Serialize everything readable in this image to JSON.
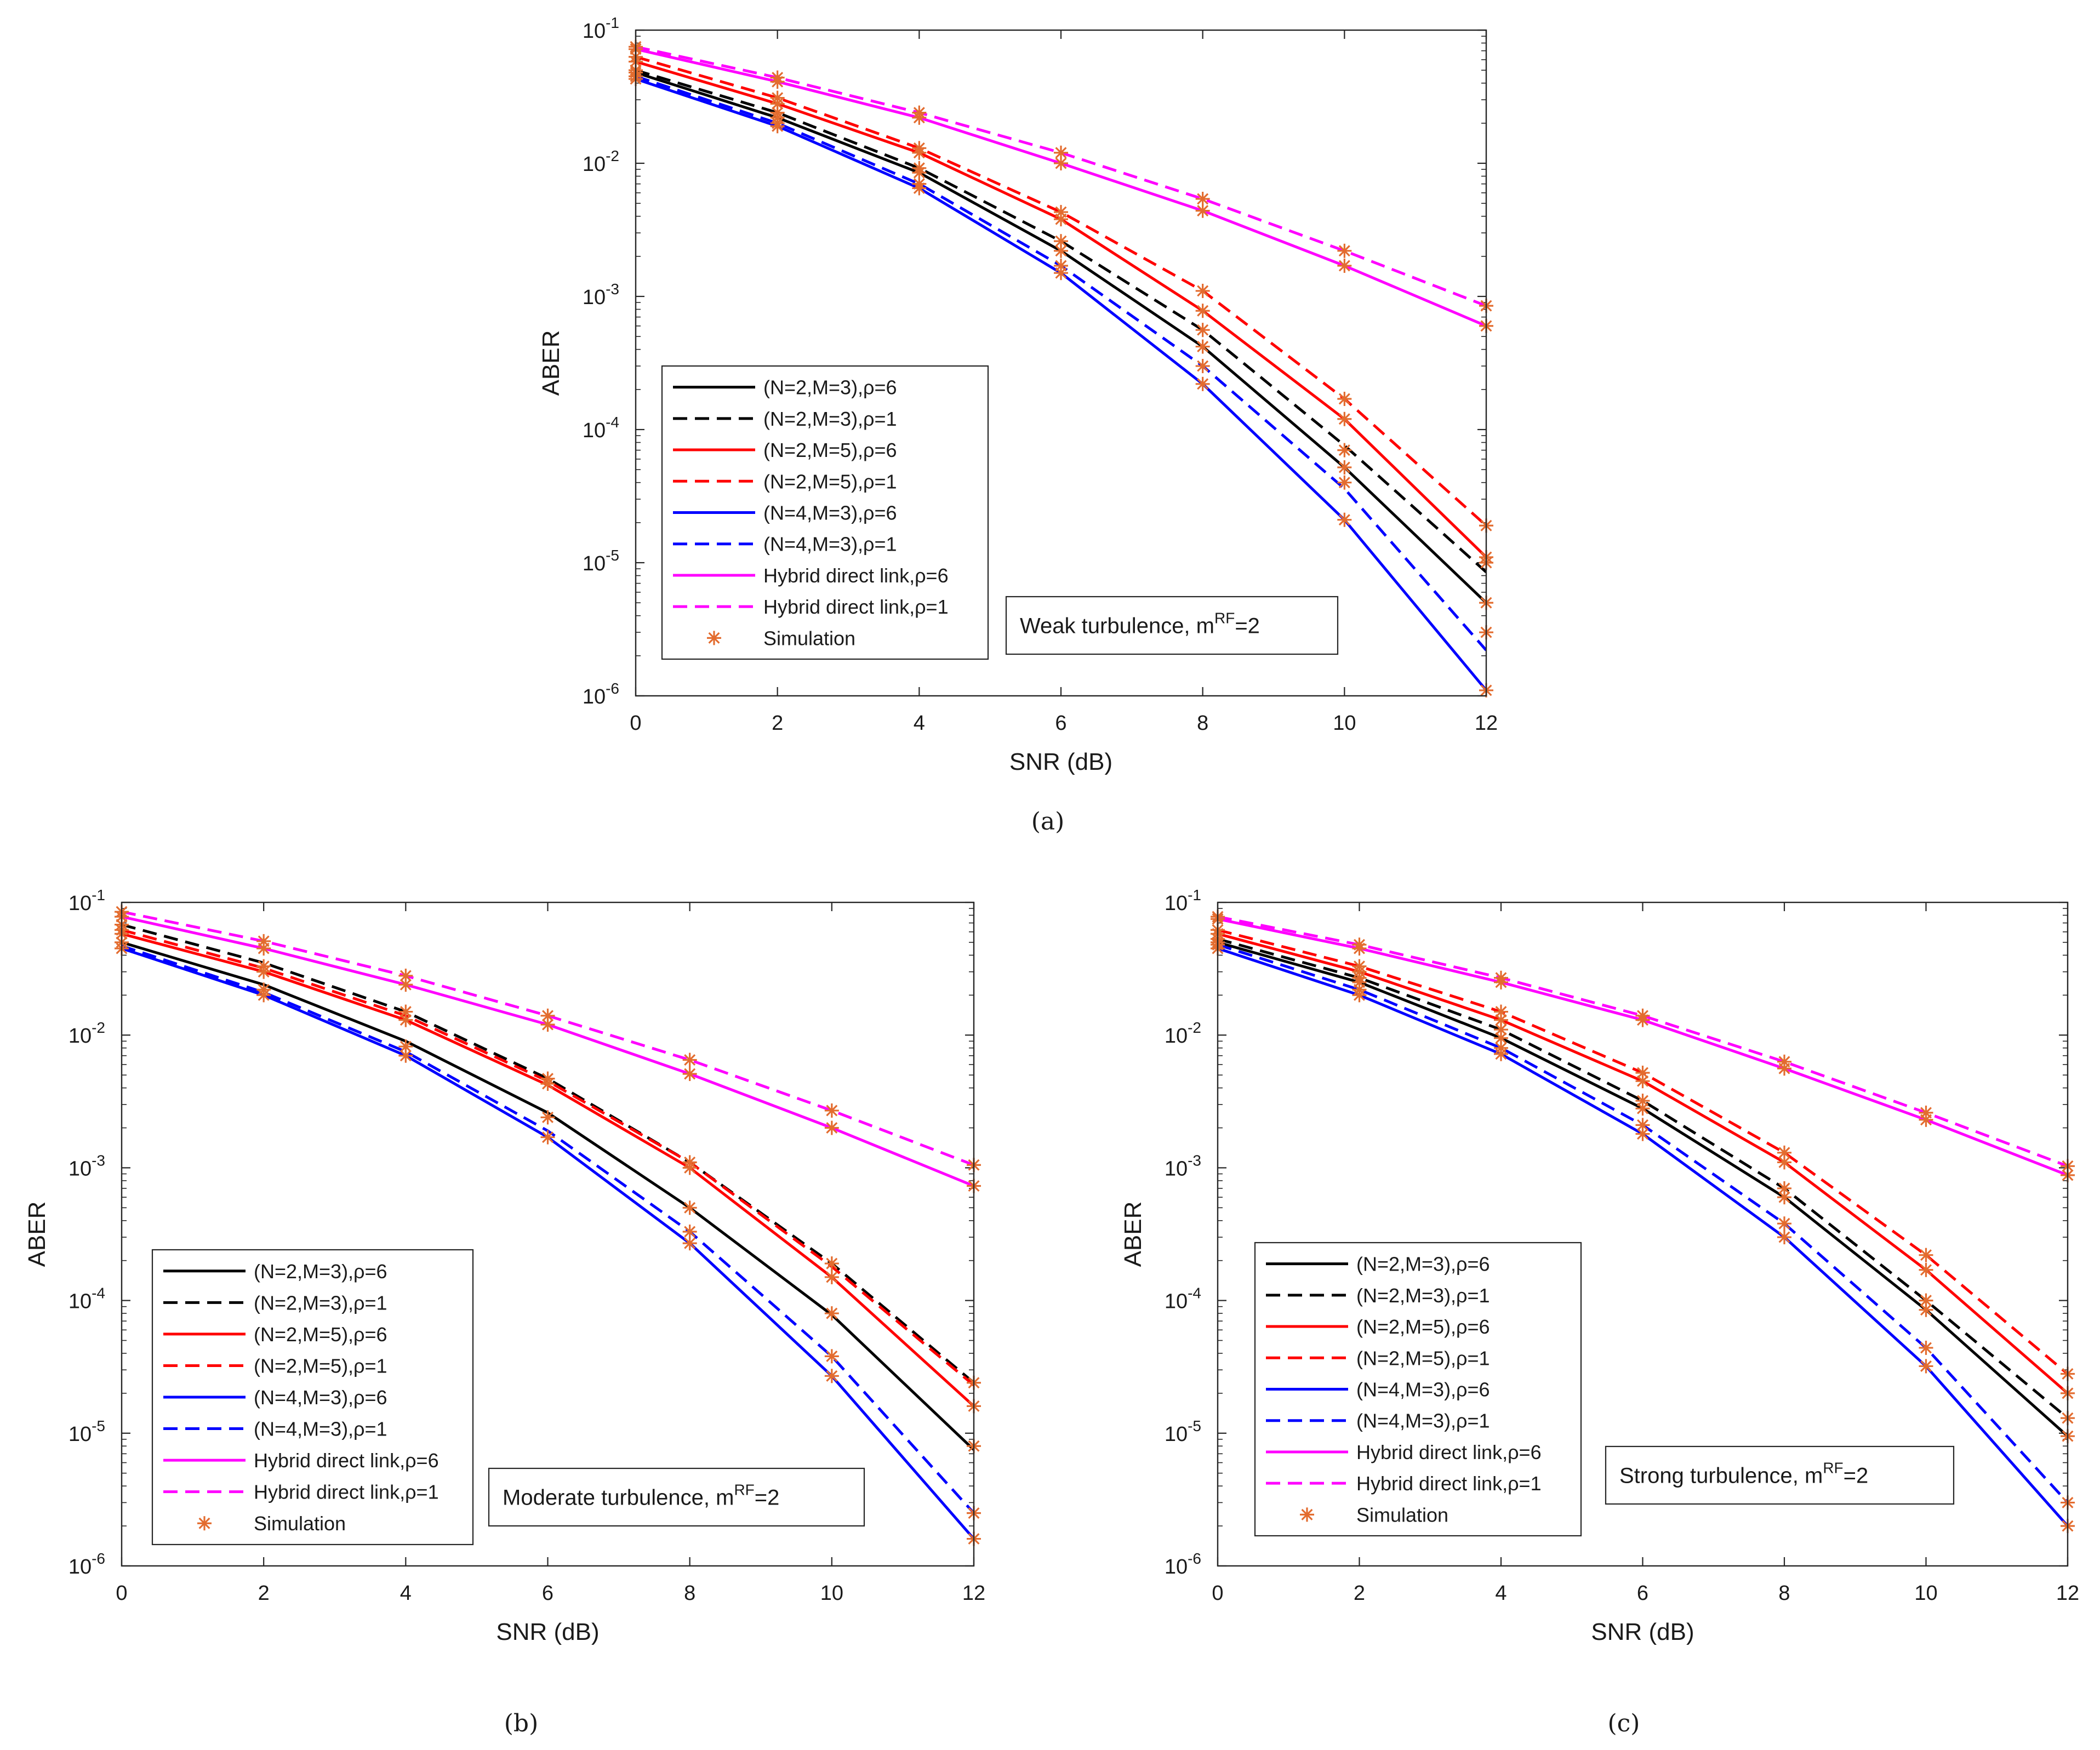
{
  "figure": {
    "x_values": [
      0,
      2,
      4,
      6,
      8,
      10,
      12
    ],
    "legend_entries": [
      {
        "key": "n2m3_r6",
        "label": "(N=2,M=3),ρ=6",
        "color": "#000000",
        "dashed": false,
        "marker": false
      },
      {
        "key": "n2m3_r1",
        "label": "(N=2,M=3),ρ=1",
        "color": "#000000",
        "dashed": true,
        "marker": false
      },
      {
        "key": "n2m5_r6",
        "label": "(N=2,M=5),ρ=6",
        "color": "#ff0000",
        "dashed": false,
        "marker": false
      },
      {
        "key": "n2m5_r1",
        "label": "(N=2,M=5),ρ=1",
        "color": "#ff0000",
        "dashed": true,
        "marker": false
      },
      {
        "key": "n4m3_r6",
        "label": "(N=4,M=3),ρ=6",
        "color": "#0000ff",
        "dashed": false,
        "marker": false
      },
      {
        "key": "n4m3_r1",
        "label": "(N=4,M=3),ρ=1",
        "color": "#0000ff",
        "dashed": true,
        "marker": false
      },
      {
        "key": "hyb_r6",
        "label": "Hybrid direct link,ρ=6",
        "color": "#ff00ff",
        "dashed": false,
        "marker": false
      },
      {
        "key": "hyb_r1",
        "label": "Hybrid direct link,ρ=1",
        "color": "#ff00ff",
        "dashed": true,
        "marker": false
      },
      {
        "key": "sim",
        "label": "Simulation",
        "color": "#e36c2f",
        "dashed": false,
        "marker": true
      }
    ]
  },
  "chart_data": [
    {
      "type": "line",
      "panel": "(a)",
      "xlabel": "SNR (dB)",
      "ylabel": "ABER",
      "xlim": [
        0,
        12
      ],
      "ylim": [
        1e-06,
        0.1
      ],
      "yscale": "log",
      "x_ticks": [
        "0",
        "2",
        "4",
        "6",
        "8",
        "10",
        "12"
      ],
      "annotation": {
        "text": "Weak turbulence, m",
        "sup": "RF",
        "suffix": "=2"
      },
      "legend_position": "lower-left",
      "series": [
        {
          "key": "n2m3_r6",
          "values": [
            0.048,
            0.022,
            0.0085,
            0.0022,
            0.00042,
            5.2e-05,
            5e-06
          ]
        },
        {
          "key": "n2m3_r1",
          "values": [
            0.05,
            0.024,
            0.0092,
            0.0026,
            0.00056,
            7.6e-05,
            8.5e-06
          ]
        },
        {
          "key": "n2m5_r6",
          "values": [
            0.058,
            0.028,
            0.012,
            0.0038,
            0.00078,
            0.00012,
            1.1e-05
          ]
        },
        {
          "key": "n2m5_r1",
          "values": [
            0.063,
            0.031,
            0.013,
            0.0043,
            0.0011,
            0.00017,
            1.9e-05
          ]
        },
        {
          "key": "n4m3_r6",
          "values": [
            0.043,
            0.019,
            0.0065,
            0.0015,
            0.00022,
            2.1e-05,
            1.1e-06
          ]
        },
        {
          "key": "n4m3_r1",
          "values": [
            0.045,
            0.02,
            0.007,
            0.0017,
            0.0003,
            3.6e-05,
            2.2e-06
          ]
        },
        {
          "key": "hyb_r6",
          "values": [
            0.072,
            0.041,
            0.022,
            0.01,
            0.0044,
            0.0017,
            0.0006
          ]
        },
        {
          "key": "hyb_r1",
          "values": [
            0.075,
            0.044,
            0.024,
            0.012,
            0.0054,
            0.0022,
            0.00085
          ]
        }
      ],
      "simulation_points": [
        [
          0,
          0.048
        ],
        [
          0,
          0.05
        ],
        [
          0,
          0.058
        ],
        [
          0,
          0.063
        ],
        [
          0,
          0.043
        ],
        [
          0,
          0.045
        ],
        [
          0,
          0.072
        ],
        [
          0,
          0.075
        ],
        [
          2,
          0.022
        ],
        [
          2,
          0.024
        ],
        [
          2,
          0.028
        ],
        [
          2,
          0.031
        ],
        [
          2,
          0.019
        ],
        [
          2,
          0.02
        ],
        [
          2,
          0.041
        ],
        [
          2,
          0.044
        ],
        [
          4,
          0.0085
        ],
        [
          4,
          0.0092
        ],
        [
          4,
          0.012
        ],
        [
          4,
          0.013
        ],
        [
          4,
          0.0065
        ],
        [
          4,
          0.007
        ],
        [
          4,
          0.022
        ],
        [
          4,
          0.024
        ],
        [
          6,
          0.0022
        ],
        [
          6,
          0.0026
        ],
        [
          6,
          0.0038
        ],
        [
          6,
          0.0043
        ],
        [
          6,
          0.0015
        ],
        [
          6,
          0.0017
        ],
        [
          6,
          0.01
        ],
        [
          6,
          0.012
        ],
        [
          8,
          0.00042
        ],
        [
          8,
          0.00056
        ],
        [
          8,
          0.00078
        ],
        [
          8,
          0.0011
        ],
        [
          8,
          0.00022
        ],
        [
          8,
          0.0003
        ],
        [
          8,
          0.0044
        ],
        [
          8,
          0.0054
        ],
        [
          10,
          5.2e-05
        ],
        [
          10,
          7e-05
        ],
        [
          10,
          0.00012
        ],
        [
          10,
          0.00017
        ],
        [
          10,
          2.1e-05
        ],
        [
          10,
          4e-05
        ],
        [
          10,
          0.0017
        ],
        [
          10,
          0.0022
        ],
        [
          12,
          5e-06
        ],
        [
          12,
          1e-05
        ],
        [
          12,
          1.1e-05
        ],
        [
          12,
          1.9e-05
        ],
        [
          12,
          1.1e-06
        ],
        [
          12,
          3e-06
        ],
        [
          12,
          0.0006
        ],
        [
          12,
          0.00085
        ]
      ]
    },
    {
      "type": "line",
      "panel": "(b)",
      "xlabel": "SNR (dB)",
      "ylabel": "ABER",
      "xlim": [
        0,
        12
      ],
      "ylim": [
        1e-06,
        0.1
      ],
      "yscale": "log",
      "x_ticks": [
        "0",
        "2",
        "4",
        "6",
        "8",
        "10",
        "12"
      ],
      "annotation": {
        "text": "Moderate turbulence, m",
        "sup": "RF",
        "suffix": "=2"
      },
      "legend_position": "lower-left",
      "series": [
        {
          "key": "n2m3_r6",
          "values": [
            0.05,
            0.024,
            0.009,
            0.0026,
            0.0005,
            7.8e-05,
            7.5e-06
          ]
        },
        {
          "key": "n2m3_r1",
          "values": [
            0.068,
            0.035,
            0.015,
            0.0047,
            0.0011,
            0.00019,
            2.4e-05
          ]
        },
        {
          "key": "n2m5_r6",
          "values": [
            0.058,
            0.03,
            0.013,
            0.0042,
            0.001,
            0.00015,
            1.6e-05
          ]
        },
        {
          "key": "n2m5_r1",
          "values": [
            0.062,
            0.032,
            0.014,
            0.0045,
            0.0011,
            0.00018,
            2.3e-05
          ]
        },
        {
          "key": "n4m3_r6",
          "values": [
            0.045,
            0.02,
            0.007,
            0.0017,
            0.00027,
            2.7e-05,
            1.6e-06
          ]
        },
        {
          "key": "n4m3_r1",
          "values": [
            0.047,
            0.021,
            0.0075,
            0.0019,
            0.00033,
            3.8e-05,
            2.5e-06
          ]
        },
        {
          "key": "hyb_r6",
          "values": [
            0.078,
            0.045,
            0.024,
            0.012,
            0.0051,
            0.002,
            0.00073
          ]
        },
        {
          "key": "hyb_r1",
          "values": [
            0.085,
            0.051,
            0.028,
            0.014,
            0.0065,
            0.0027,
            0.00105
          ]
        }
      ],
      "simulation_points": [
        [
          0,
          0.045
        ],
        [
          0,
          0.05
        ],
        [
          0,
          0.058
        ],
        [
          0,
          0.062
        ],
        [
          0,
          0.068
        ],
        [
          0,
          0.078
        ],
        [
          0,
          0.085
        ],
        [
          2,
          0.02
        ],
        [
          2,
          0.022
        ],
        [
          2,
          0.03
        ],
        [
          2,
          0.033
        ],
        [
          2,
          0.045
        ],
        [
          2,
          0.051
        ],
        [
          4,
          0.007
        ],
        [
          4,
          0.0082
        ],
        [
          4,
          0.013
        ],
        [
          4,
          0.015
        ],
        [
          4,
          0.024
        ],
        [
          4,
          0.028
        ],
        [
          6,
          0.0017
        ],
        [
          6,
          0.0024
        ],
        [
          6,
          0.0043
        ],
        [
          6,
          0.0047
        ],
        [
          6,
          0.012
        ],
        [
          6,
          0.014
        ],
        [
          8,
          0.00027
        ],
        [
          8,
          0.00033
        ],
        [
          8,
          0.0005
        ],
        [
          8,
          0.001
        ],
        [
          8,
          0.0011
        ],
        [
          8,
          0.0051
        ],
        [
          8,
          0.0065
        ],
        [
          10,
          2.7e-05
        ],
        [
          10,
          3.8e-05
        ],
        [
          10,
          8e-05
        ],
        [
          10,
          0.00015
        ],
        [
          10,
          0.00019
        ],
        [
          10,
          0.002
        ],
        [
          10,
          0.0027
        ],
        [
          12,
          1.6e-06
        ],
        [
          12,
          2.5e-06
        ],
        [
          12,
          8e-06
        ],
        [
          12,
          1.6e-05
        ],
        [
          12,
          2.4e-05
        ],
        [
          12,
          0.00073
        ],
        [
          12,
          0.00105
        ]
      ]
    },
    {
      "type": "line",
      "panel": "(c)",
      "xlabel": "SNR (dB)",
      "ylabel": "ABER",
      "xlim": [
        0,
        12
      ],
      "ylim": [
        1e-06,
        0.1
      ],
      "yscale": "log",
      "x_ticks": [
        "0",
        "2",
        "4",
        "6",
        "8",
        "10",
        "12"
      ],
      "annotation": {
        "text": "Strong turbulence, m",
        "sup": "RF",
        "suffix": "=2"
      },
      "legend_position": "lower-left",
      "series": [
        {
          "key": "n2m3_r6",
          "values": [
            0.05,
            0.025,
            0.0095,
            0.0028,
            0.0006,
            8.5e-05,
            9.5e-06
          ]
        },
        {
          "key": "n2m3_r1",
          "values": [
            0.053,
            0.027,
            0.011,
            0.0032,
            0.0007,
            0.0001,
            1.3e-05
          ]
        },
        {
          "key": "n2m5_r6",
          "values": [
            0.058,
            0.03,
            0.013,
            0.0045,
            0.0011,
            0.00017,
            2e-05
          ]
        },
        {
          "key": "n2m5_r1",
          "values": [
            0.062,
            0.033,
            0.015,
            0.0052,
            0.0013,
            0.00022,
            2.8e-05
          ]
        },
        {
          "key": "n4m3_r6",
          "values": [
            0.045,
            0.02,
            0.0072,
            0.0018,
            0.0003,
            3.2e-05,
            2e-06
          ]
        },
        {
          "key": "n4m3_r1",
          "values": [
            0.048,
            0.022,
            0.008,
            0.0021,
            0.00038,
            4.4e-05,
            3e-06
          ]
        },
        {
          "key": "hyb_r6",
          "values": [
            0.075,
            0.045,
            0.025,
            0.013,
            0.0056,
            0.0023,
            0.00088
          ]
        },
        {
          "key": "hyb_r1",
          "values": [
            0.078,
            0.048,
            0.027,
            0.014,
            0.0063,
            0.0026,
            0.00103
          ]
        }
      ],
      "simulation_points": [
        [
          0,
          0.045
        ],
        [
          0,
          0.048
        ],
        [
          0,
          0.05
        ],
        [
          0,
          0.053
        ],
        [
          0,
          0.058
        ],
        [
          0,
          0.062
        ],
        [
          0,
          0.075
        ],
        [
          0,
          0.078
        ],
        [
          2,
          0.02
        ],
        [
          2,
          0.022
        ],
        [
          2,
          0.025
        ],
        [
          2,
          0.027
        ],
        [
          2,
          0.03
        ],
        [
          2,
          0.033
        ],
        [
          2,
          0.045
        ],
        [
          2,
          0.048
        ],
        [
          4,
          0.0072
        ],
        [
          4,
          0.008
        ],
        [
          4,
          0.0095
        ],
        [
          4,
          0.011
        ],
        [
          4,
          0.013
        ],
        [
          4,
          0.015
        ],
        [
          4,
          0.025
        ],
        [
          4,
          0.027
        ],
        [
          6,
          0.0018
        ],
        [
          6,
          0.0021
        ],
        [
          6,
          0.0028
        ],
        [
          6,
          0.0032
        ],
        [
          6,
          0.0045
        ],
        [
          6,
          0.0052
        ],
        [
          6,
          0.013
        ],
        [
          6,
          0.014
        ],
        [
          8,
          0.0003
        ],
        [
          8,
          0.00038
        ],
        [
          8,
          0.0006
        ],
        [
          8,
          0.0007
        ],
        [
          8,
          0.0011
        ],
        [
          8,
          0.0013
        ],
        [
          8,
          0.0056
        ],
        [
          8,
          0.0063
        ],
        [
          10,
          3.2e-05
        ],
        [
          10,
          4.4e-05
        ],
        [
          10,
          8.5e-05
        ],
        [
          10,
          0.0001
        ],
        [
          10,
          0.00017
        ],
        [
          10,
          0.00022
        ],
        [
          10,
          0.0023
        ],
        [
          10,
          0.0026
        ],
        [
          12,
          2e-06
        ],
        [
          12,
          3e-06
        ],
        [
          12,
          9.5e-06
        ],
        [
          12,
          1.3e-05
        ],
        [
          12,
          2e-05
        ],
        [
          12,
          2.8e-05
        ],
        [
          12,
          0.00088
        ],
        [
          12,
          0.00103
        ]
      ]
    }
  ]
}
